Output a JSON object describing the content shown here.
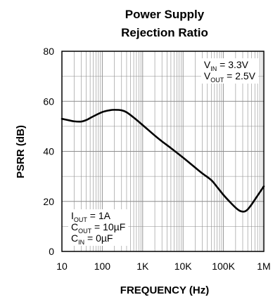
{
  "chart_data": {
    "type": "line",
    "title": [
      "Power Supply",
      "Rejection Ratio"
    ],
    "xlabel": "FREQUENCY (Hz)",
    "ylabel": "PSRR (dB)",
    "x_scale": "log",
    "xlim": [
      10,
      1000000
    ],
    "ylim": [
      0,
      80
    ],
    "x_ticks": [
      10,
      100,
      1000,
      10000,
      100000,
      1000000
    ],
    "x_tick_labels": [
      "10",
      "100",
      "1K",
      "10K",
      "100K",
      "1M"
    ],
    "y_ticks": [
      0,
      20,
      40,
      60,
      80
    ],
    "y_tick_labels": [
      "0",
      "20",
      "40",
      "60",
      "80"
    ],
    "grid": true,
    "legend": "none",
    "series": [
      {
        "x": [
          10,
          15,
          20,
          30,
          40,
          60,
          100,
          150,
          200,
          300,
          400,
          600,
          1000,
          2000,
          3000,
          5000,
          10000,
          20000,
          30000,
          50000,
          70000,
          100000,
          150000,
          200000,
          250000,
          300000,
          350000,
          400000,
          500000,
          700000,
          1000000
        ],
        "values": [
          53,
          52.4,
          52,
          51.9,
          52.5,
          54,
          55.7,
          56.4,
          56.6,
          56.4,
          55.6,
          53.5,
          50.5,
          46.3,
          44,
          41.3,
          37.5,
          33.5,
          31.2,
          28.5,
          25.7,
          22.6,
          19.5,
          17.5,
          16.3,
          15.9,
          16.1,
          16.8,
          18.8,
          22.3,
          26
        ]
      }
    ],
    "annotations": [
      {
        "position": "top-right",
        "lines": [
          {
            "base": "V",
            "sub": "IN",
            "rest": " = 3.3V"
          },
          {
            "base": "V",
            "sub": "OUT",
            "rest": " = 2.5V"
          }
        ]
      },
      {
        "position": "bottom-left",
        "lines": [
          {
            "base": "I",
            "sub": "OUT",
            "rest": " = 1A"
          },
          {
            "base": "C",
            "sub": "OUT",
            "rest": " = 10µF"
          },
          {
            "base": "C",
            "sub": "IN",
            "rest": " = 0µF"
          }
        ]
      }
    ],
    "colors": {
      "line": "#000000",
      "grid": "#8c8c8c",
      "text": "#000000"
    }
  }
}
